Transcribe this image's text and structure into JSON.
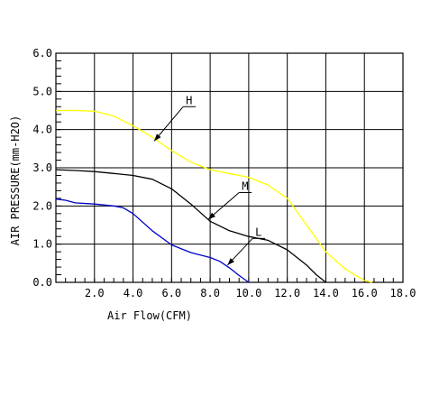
{
  "chart_data": {
    "type": "line",
    "xlabel": "Air Flow(CFM)",
    "ylabel": "AIR PRESSURE(mm-H2O)",
    "xlim": [
      0,
      18
    ],
    "ylim": [
      0,
      6
    ],
    "x_ticks": [
      2,
      4,
      6,
      8,
      10,
      12,
      14,
      16,
      18
    ],
    "y_ticks": [
      0,
      1,
      2,
      3,
      4,
      5,
      6
    ],
    "x_tick_labels": [
      "2.0",
      "4.0",
      "6.0",
      "8.0",
      "10.0",
      "12.0",
      "14.0",
      "16.0",
      "18.0"
    ],
    "y_tick_labels": [
      "0.0",
      "1.0",
      "2.0",
      "3.0",
      "4.0",
      "5.0",
      "6.0"
    ],
    "grid": true,
    "series": [
      {
        "name": "H",
        "color": "#ffff00",
        "x": [
          0,
          1,
          2,
          3,
          4,
          5,
          6,
          7,
          8,
          9,
          10,
          11,
          12,
          13,
          14,
          15,
          16,
          16.4
        ],
        "y": [
          4.5,
          4.5,
          4.48,
          4.35,
          4.1,
          3.8,
          3.45,
          3.15,
          2.95,
          2.85,
          2.75,
          2.55,
          2.2,
          1.5,
          0.8,
          0.35,
          0.05,
          0.0
        ]
      },
      {
        "name": "M",
        "color": "#000000",
        "x": [
          0,
          1,
          2,
          3,
          4,
          5,
          6,
          7,
          8,
          9,
          10,
          11,
          12,
          13,
          13.5,
          14
        ],
        "y": [
          2.95,
          2.93,
          2.9,
          2.85,
          2.8,
          2.7,
          2.45,
          2.05,
          1.6,
          1.35,
          1.2,
          1.1,
          0.85,
          0.45,
          0.2,
          0.0
        ]
      },
      {
        "name": "L",
        "color": "#0000cc",
        "x": [
          0,
          0.5,
          1,
          2,
          3,
          3.5,
          4,
          5,
          6,
          7,
          8,
          8.5,
          9,
          9.5,
          10
        ],
        "y": [
          2.18,
          2.15,
          2.08,
          2.05,
          2.0,
          1.95,
          1.8,
          1.35,
          0.98,
          0.78,
          0.65,
          0.55,
          0.38,
          0.18,
          0.0
        ]
      }
    ],
    "annotations": [
      {
        "text": "H",
        "x": 6.6,
        "y": 4.6,
        "arrow_to": [
          5.1,
          3.7
        ]
      },
      {
        "text": "M",
        "x": 9.5,
        "y": 2.35,
        "arrow_to": [
          7.9,
          1.65
        ]
      },
      {
        "text": "L",
        "x": 10.2,
        "y": 1.15,
        "arrow_to": [
          8.9,
          0.45
        ]
      }
    ]
  }
}
